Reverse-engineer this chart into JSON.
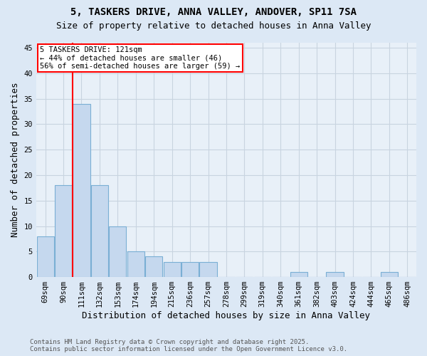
{
  "title1": "5, TASKERS DRIVE, ANNA VALLEY, ANDOVER, SP11 7SA",
  "title2": "Size of property relative to detached houses in Anna Valley",
  "xlabel": "Distribution of detached houses by size in Anna Valley",
  "ylabel": "Number of detached properties",
  "bin_labels": [
    "69sqm",
    "90sqm",
    "111sqm",
    "132sqm",
    "153sqm",
    "174sqm",
    "194sqm",
    "215sqm",
    "236sqm",
    "257sqm",
    "278sqm",
    "299sqm",
    "319sqm",
    "340sqm",
    "361sqm",
    "382sqm",
    "403sqm",
    "424sqm",
    "444sqm",
    "465sqm",
    "486sqm"
  ],
  "values": [
    8,
    18,
    34,
    18,
    10,
    5,
    4,
    3,
    3,
    3,
    0,
    0,
    0,
    0,
    1,
    0,
    1,
    0,
    0,
    1,
    0
  ],
  "bar_color": "#c5d8ee",
  "bar_edgecolor": "#7aafd4",
  "vline_color": "red",
  "annotation_text": "5 TASKERS DRIVE: 121sqm\n← 44% of detached houses are smaller (46)\n56% of semi-detached houses are larger (59) →",
  "annotation_box_color": "white",
  "annotation_box_edgecolor": "red",
  "ylim": [
    0,
    46
  ],
  "yticks": [
    0,
    5,
    10,
    15,
    20,
    25,
    30,
    35,
    40,
    45
  ],
  "footer": "Contains HM Land Registry data © Crown copyright and database right 2025.\nContains public sector information licensed under the Open Government Licence v3.0.",
  "background_color": "#dce8f5",
  "plot_bg_color": "#e8f0f8",
  "grid_color": "#c8d4e0",
  "title_fontsize": 10,
  "subtitle_fontsize": 9,
  "tick_fontsize": 7.5,
  "xlabel_fontsize": 9,
  "ylabel_fontsize": 9,
  "footer_fontsize": 6.5
}
